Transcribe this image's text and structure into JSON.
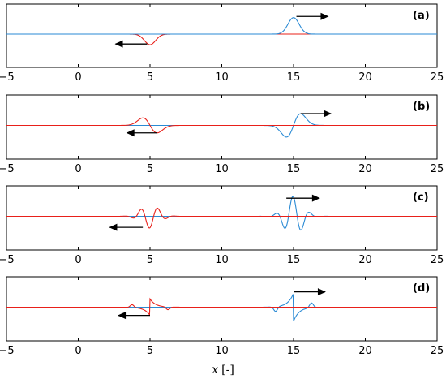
{
  "chart_data": {
    "type": "line",
    "xlabel": "x [-]",
    "xlabel_var": "x",
    "xlabel_unit": "[-]",
    "xlim": [
      -5,
      25
    ],
    "xticks": [
      -5,
      0,
      5,
      10,
      15,
      20,
      25
    ],
    "colors": {
      "left_wave": "#e8201a",
      "right_wave": "#2a8ad4",
      "arrow": "#000000"
    },
    "panels": [
      {
        "label": "(a)",
        "series": [
          {
            "color": "#e8201a",
            "shape": "gaussian",
            "center": 5,
            "width": 0.55,
            "amplitude": -0.45
          },
          {
            "color": "#2a8ad4",
            "shape": "gaussian",
            "center": 15,
            "width": 0.55,
            "amplitude": 0.7
          }
        ],
        "arrows": [
          {
            "direction": "left",
            "x_from": 4.8,
            "x_to": 2.6,
            "y": -0.42
          },
          {
            "direction": "right",
            "x_from": 15.2,
            "x_to": 17.4,
            "y": 0.75
          }
        ]
      },
      {
        "label": "(b)",
        "series": [
          {
            "color": "#2a8ad4",
            "shape": "dgaussian",
            "center": 15,
            "width": 0.7,
            "amplitude": 0.7
          },
          {
            "color": "#e8201a",
            "shape": "dgaussian",
            "center": 5,
            "width": 0.7,
            "amplitude": -0.45
          }
        ],
        "arrows": [
          {
            "direction": "left",
            "x_from": 5.5,
            "x_to": 3.4,
            "y": -0.32
          },
          {
            "direction": "right",
            "x_from": 15.5,
            "x_to": 17.6,
            "y": 0.5
          }
        ]
      },
      {
        "label": "(c)",
        "series": [
          {
            "color": "#2a8ad4",
            "shape": "wavepacket",
            "center": 15,
            "width": 0.65,
            "amplitude": 0.85,
            "k": 5.2
          },
          {
            "color": "#e8201a",
            "shape": "wavepacket",
            "center": 5,
            "width": 0.65,
            "amplitude": -0.5,
            "k": 5.2
          }
        ],
        "arrows": [
          {
            "direction": "left",
            "x_from": 4.5,
            "x_to": 2.2,
            "y": -0.47
          },
          {
            "direction": "right",
            "x_from": 14.5,
            "x_to": 16.8,
            "y": 0.77
          }
        ]
      },
      {
        "label": "(d)",
        "series": [
          {
            "color": "#2a8ad4",
            "shape": "kink",
            "center": 15,
            "amplitude": 0.6,
            "scale": 0.85
          },
          {
            "color": "#e8201a",
            "shape": "kink",
            "center": 5,
            "amplitude": -0.35,
            "scale": 0.85
          }
        ],
        "arrows": [
          {
            "direction": "left",
            "x_from": 5.0,
            "x_to": 2.8,
            "y": -0.35
          },
          {
            "direction": "right",
            "x_from": 15.0,
            "x_to": 17.2,
            "y": 0.65
          }
        ]
      }
    ]
  }
}
